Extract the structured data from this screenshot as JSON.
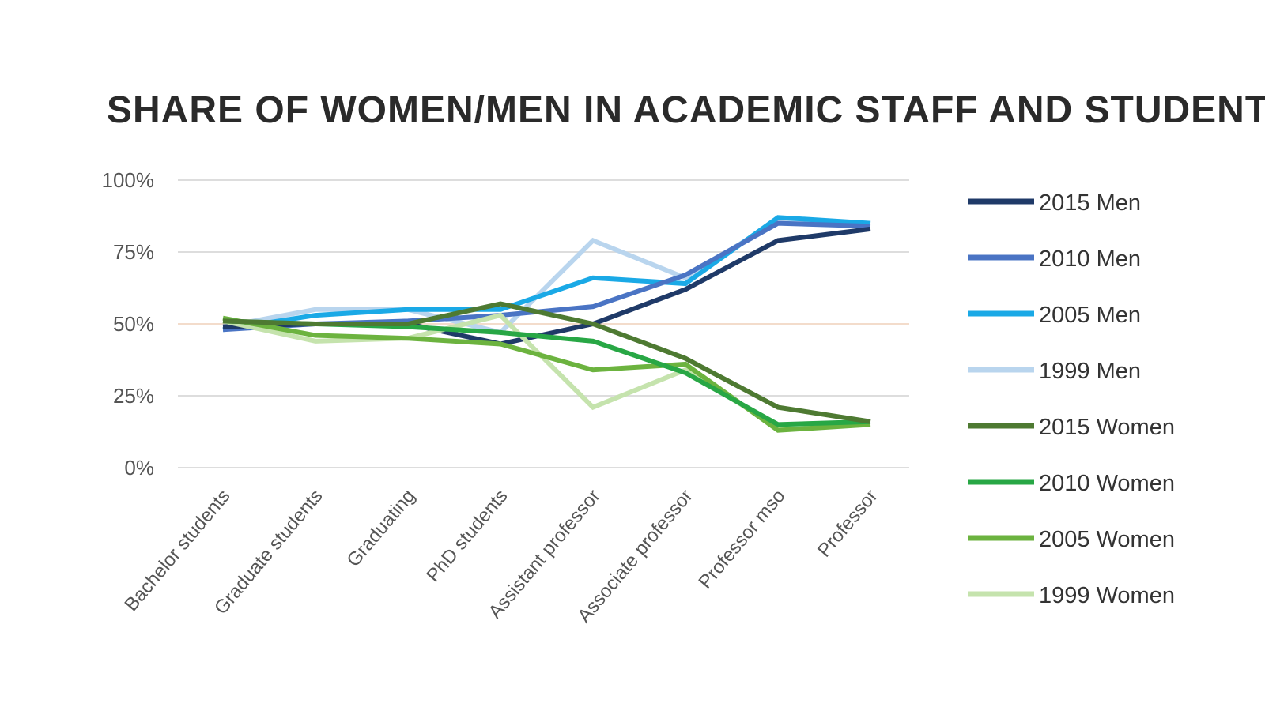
{
  "chart_data": {
    "type": "line",
    "title": "SHARE OF WOMEN/MEN IN ACADEMIC STAFF AND STUDENTS",
    "xlabel": "",
    "ylabel": "",
    "ylim": [
      0,
      100
    ],
    "yticks": [
      0,
      25,
      50,
      75,
      100
    ],
    "ytick_labels": [
      "0%",
      "25%",
      "50%",
      "75%",
      "100%"
    ],
    "highlight_tick_color": "#e0a070",
    "grid": true,
    "legend_position": "right",
    "categories": [
      "Bachelor students",
      "Graduate students",
      "Graduating",
      "PhD students",
      "Assistant professor",
      "Associate professor",
      "Professor mso",
      "Professor"
    ],
    "series": [
      {
        "name": "2015 Men",
        "color": "#1f3a68",
        "values": [
          49,
          50,
          50,
          43,
          50,
          62,
          79,
          83
        ]
      },
      {
        "name": "2010 Men",
        "color": "#4a74c4",
        "values": [
          48,
          50,
          51,
          53,
          56,
          67,
          85,
          84
        ]
      },
      {
        "name": "2005 Men",
        "color": "#1aa9e6",
        "values": [
          48,
          53,
          55,
          55,
          66,
          64,
          87,
          85
        ]
      },
      {
        "name": "1999 Men",
        "color": "#b9d5ee",
        "values": [
          49,
          55,
          55,
          47,
          79,
          66,
          86,
          85
        ]
      },
      {
        "name": "2015 Women",
        "color": "#4e7a32",
        "values": [
          51,
          50,
          50,
          57,
          50,
          38,
          21,
          16
        ]
      },
      {
        "name": "2010 Women",
        "color": "#28a745",
        "values": [
          51,
          50,
          49,
          47,
          44,
          33,
          15,
          16
        ]
      },
      {
        "name": "2005 Women",
        "color": "#6cb33f",
        "values": [
          52,
          46,
          45,
          43,
          34,
          36,
          13,
          15
        ]
      },
      {
        "name": "1999 Women",
        "color": "#c5e3ad",
        "values": [
          51,
          44,
          45,
          53,
          21,
          34,
          14,
          15
        ]
      }
    ]
  }
}
